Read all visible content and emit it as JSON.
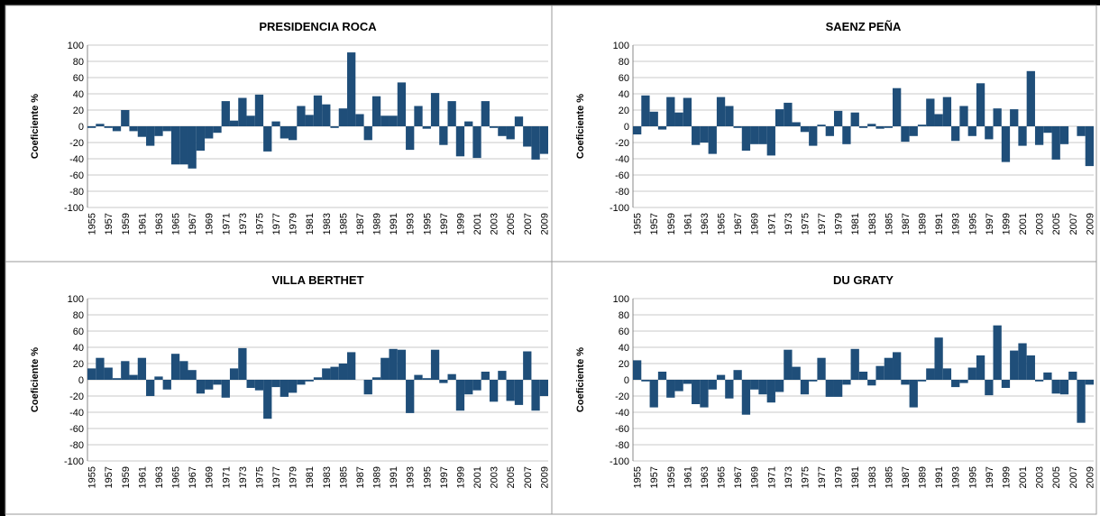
{
  "chart_data": [
    {
      "type": "bar",
      "title": "PRESIDENCIA ROCA",
      "ylabel": "Coeficiente %",
      "color": "#1f4e79",
      "categories": [
        "1955",
        null,
        "1957",
        null,
        "1959",
        null,
        "1961",
        null,
        "1963",
        null,
        "1965",
        null,
        "1967",
        null,
        "1969",
        null,
        "1971",
        null,
        "1973",
        null,
        "1975",
        null,
        "1977",
        null,
        "1979",
        null,
        "1981",
        null,
        "1983",
        null,
        "1985",
        null,
        "1987",
        null,
        "1989",
        null,
        "1991",
        null,
        "1993",
        null,
        "1995",
        null,
        "1997",
        null,
        "1999",
        null,
        "2001",
        null,
        "2003",
        null,
        "2005",
        null,
        "2007",
        null,
        "2009"
      ],
      "values": [
        -2,
        3,
        -2,
        -6,
        20,
        -6,
        -13,
        -24,
        -12,
        -6,
        -47,
        -47,
        -52,
        -30,
        -15,
        -8,
        31,
        7,
        35,
        13,
        39,
        -31,
        6,
        -15,
        -17,
        25,
        14,
        38,
        27,
        -2,
        22,
        91,
        15,
        -17,
        37,
        13,
        13,
        54,
        -29,
        25,
        -3,
        41,
        -23,
        31,
        -37,
        6,
        -39,
        31,
        -2,
        -12,
        -16,
        12,
        -25,
        -41,
        -34
      ],
      "ylim": [
        -100,
        100
      ],
      "yticks": [
        -100,
        -80,
        -60,
        -40,
        -20,
        0,
        20,
        40,
        60,
        80,
        100
      ],
      "grid": true
    },
    {
      "type": "bar",
      "title": "SAENZ PEÑA",
      "ylabel": "Coeficiente %",
      "color": "#1f4e79",
      "categories": [
        "1955",
        null,
        "1957",
        null,
        "1959",
        null,
        "1961",
        null,
        "1963",
        null,
        "1965",
        null,
        "1967",
        null,
        "1969",
        null,
        "1971",
        null,
        "1973",
        null,
        "1975",
        null,
        "1977",
        null,
        "1979",
        null,
        "1981",
        null,
        "1983",
        null,
        "1985",
        null,
        "1987",
        null,
        "1989",
        null,
        "1991",
        null,
        "1993",
        null,
        "1995",
        null,
        "1997",
        null,
        "1999",
        null,
        "2001",
        null,
        "2003",
        null,
        "2005",
        null,
        "2007",
        null,
        "2009"
      ],
      "values": [
        -10,
        38,
        18,
        -4,
        36,
        17,
        35,
        -23,
        -20,
        -34,
        36,
        25,
        -2,
        -30,
        -22,
        -22,
        -36,
        21,
        29,
        5,
        -7,
        -24,
        2,
        -12,
        19,
        -22,
        17,
        -2,
        3,
        -3,
        -2,
        47,
        -19,
        -12,
        2,
        34,
        15,
        36,
        -18,
        25,
        -12,
        53,
        -16,
        22,
        -44,
        21,
        -24,
        68,
        -23,
        -8,
        -41,
        -22,
        0,
        -12,
        -49
      ],
      "ylim": [
        -100,
        100
      ],
      "yticks": [
        -100,
        -80,
        -60,
        -40,
        -20,
        0,
        20,
        40,
        60,
        80,
        100
      ],
      "grid": true
    },
    {
      "type": "bar",
      "title": "VILLA BERTHET",
      "ylabel": "Coeficiente %",
      "color": "#1f4e79",
      "categories": [
        "1955",
        null,
        "1957",
        null,
        "1959",
        null,
        "1961",
        null,
        "1963",
        null,
        "1965",
        null,
        "1967",
        null,
        "1969",
        null,
        "1971",
        null,
        "1973",
        null,
        "1975",
        null,
        "1977",
        null,
        "1979",
        null,
        "1981",
        null,
        "1983",
        null,
        "1985",
        null,
        "1987",
        null,
        "1989",
        null,
        "1991",
        null,
        "1993",
        null,
        "1995",
        null,
        "1997",
        null,
        "1999",
        null,
        "2001",
        null,
        "2003",
        null,
        "2005",
        null,
        "2007",
        null,
        "2009"
      ],
      "values": [
        14,
        27,
        15,
        2,
        23,
        6,
        27,
        -20,
        4,
        -12,
        32,
        23,
        12,
        -17,
        -12,
        -6,
        -22,
        14,
        39,
        -10,
        -13,
        -48,
        -9,
        -21,
        -16,
        -6,
        -2,
        3,
        14,
        16,
        20,
        34,
        0,
        -18,
        3,
        27,
        38,
        37,
        -41,
        6,
        2,
        37,
        -4,
        7,
        -38,
        -18,
        -13,
        10,
        -27,
        11,
        -26,
        -31,
        35,
        -38,
        -20
      ],
      "ylim": [
        -100,
        100
      ],
      "yticks": [
        -100,
        -80,
        -60,
        -40,
        -20,
        0,
        20,
        40,
        60,
        80,
        100
      ],
      "grid": true
    },
    {
      "type": "bar",
      "title": "DU GRATY",
      "ylabel": "Coeficiente %",
      "color": "#1f4e79",
      "categories": [
        "1955",
        null,
        "1957",
        null,
        "1959",
        null,
        "1961",
        null,
        "1963",
        null,
        "1965",
        null,
        "1967",
        null,
        "1969",
        null,
        "1971",
        null,
        "1973",
        null,
        "1975",
        null,
        "1977",
        null,
        "1979",
        null,
        "1981",
        null,
        "1983",
        null,
        "1985",
        null,
        "1987",
        null,
        "1989",
        null,
        "1991",
        null,
        "1993",
        null,
        "1995",
        null,
        "1997",
        null,
        "1999",
        null,
        "2001",
        null,
        "2003",
        null,
        "2005",
        null,
        "2007",
        null,
        "2009"
      ],
      "values": [
        24,
        -2,
        -34,
        10,
        -22,
        -14,
        -5,
        -30,
        -34,
        -12,
        6,
        -23,
        12,
        -43,
        -12,
        -18,
        -28,
        -15,
        37,
        16,
        -18,
        -2,
        27,
        -21,
        -21,
        -6,
        38,
        10,
        -7,
        17,
        27,
        34,
        -6,
        -34,
        -2,
        14,
        52,
        14,
        -9,
        -4,
        15,
        30,
        -19,
        67,
        -10,
        36,
        45,
        30,
        -2,
        9,
        -17,
        -18,
        10,
        -53,
        -6
      ],
      "ylim": [
        -100,
        100
      ],
      "yticks": [
        -100,
        -80,
        -60,
        -40,
        -20,
        0,
        20,
        40,
        60,
        80,
        100
      ],
      "grid": true
    }
  ]
}
